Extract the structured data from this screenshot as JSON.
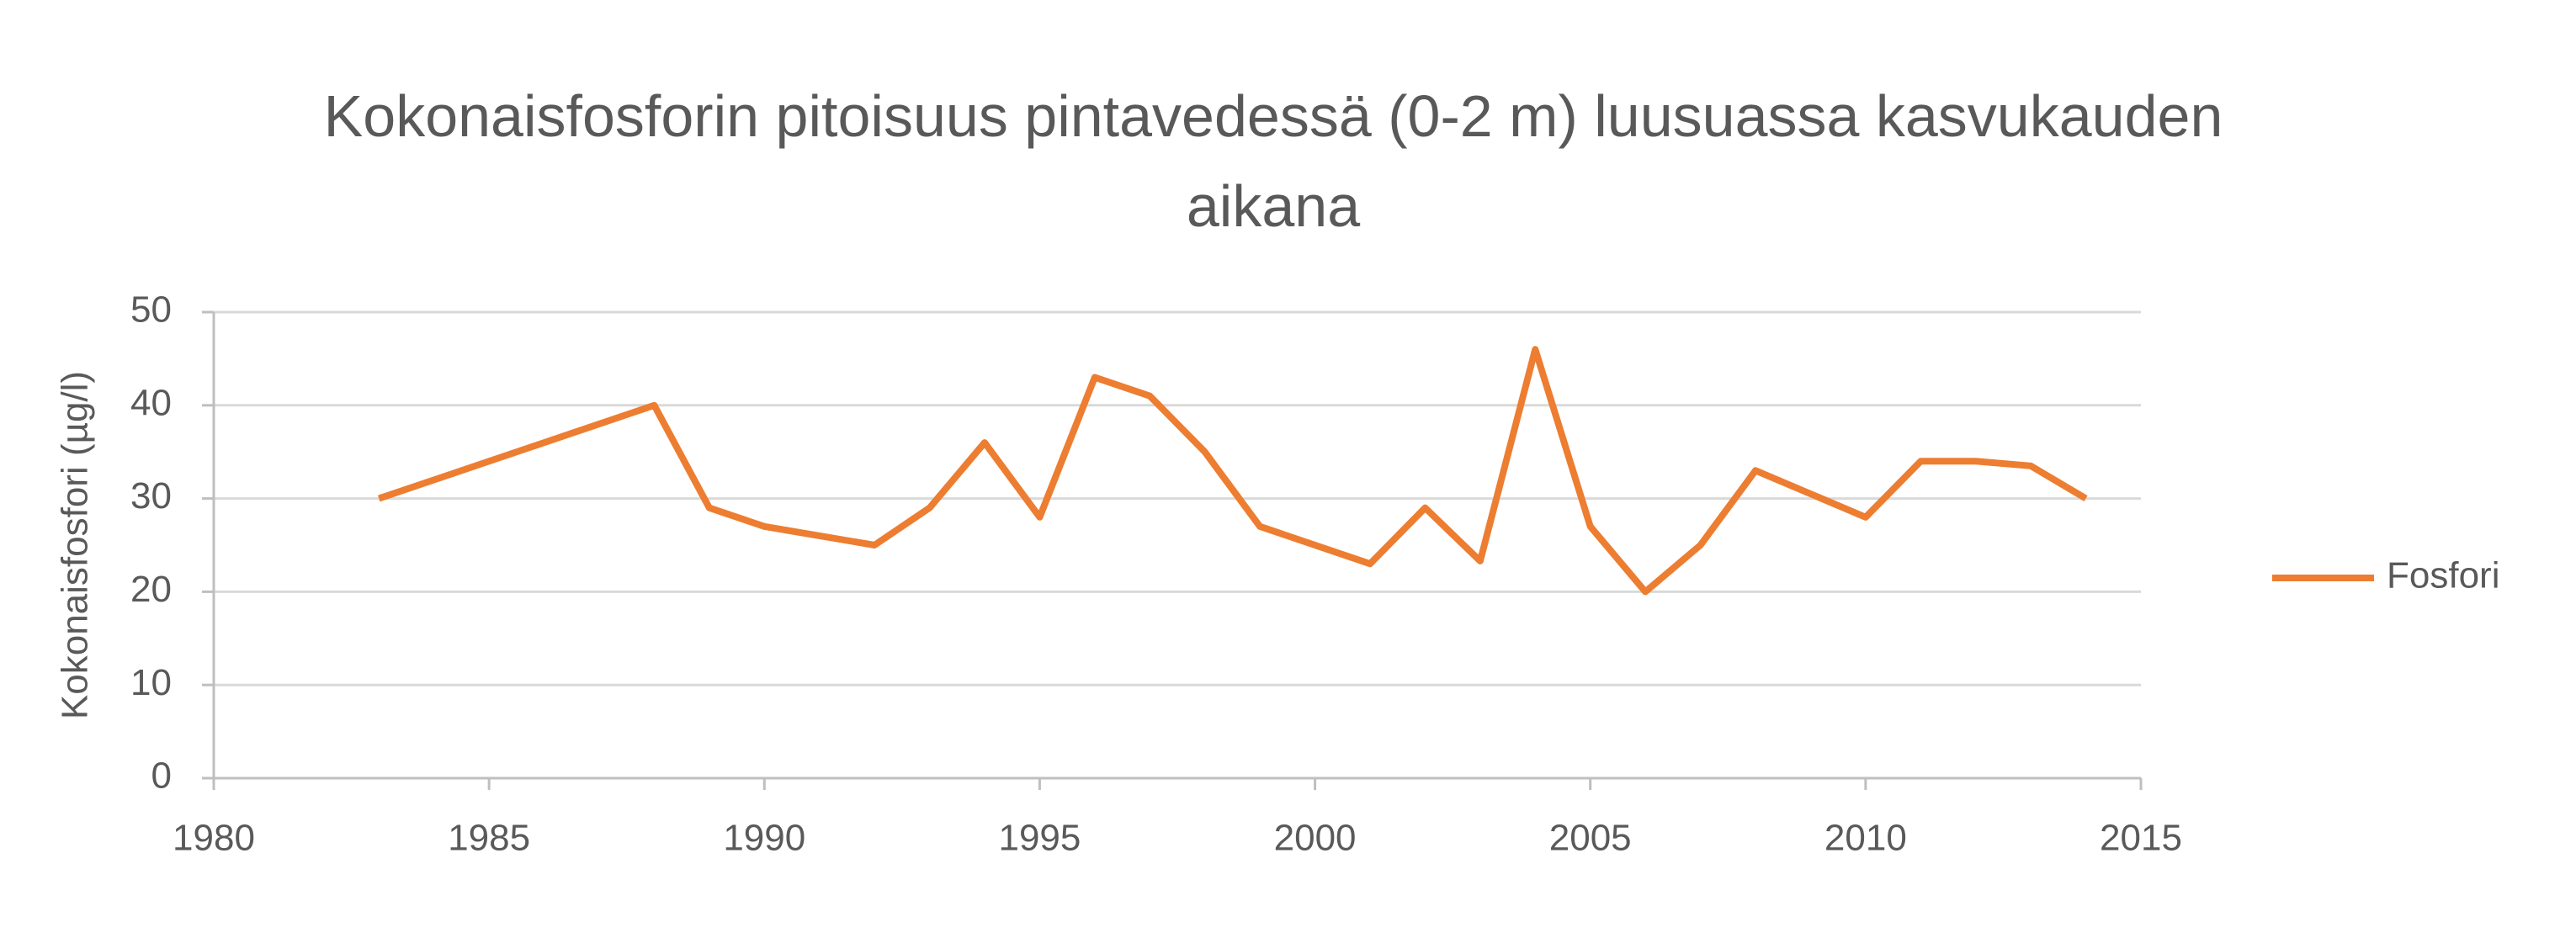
{
  "chart_data": {
    "type": "line",
    "title": "Kokonaisfosforin pitoisuus pintavedessä (0-2 m) luusuassa kasvukauden aikana",
    "y_label": "Kokonaisfosfori (µg/l)",
    "x": [
      1983,
      1988,
      1989,
      1990,
      1992,
      1993,
      1994,
      1995,
      1996,
      1997,
      1998,
      1999,
      2001,
      2002,
      2003,
      2004,
      2005,
      2006,
      2007,
      2008,
      2010,
      2011,
      2012,
      2013,
      2014
    ],
    "series": [
      {
        "name": "Fosfori",
        "color": "#ed7d31",
        "values": [
          30,
          40,
          29,
          27,
          25,
          29,
          36,
          28,
          43,
          41,
          35,
          27,
          23,
          29,
          23.3,
          46,
          27,
          20,
          25,
          33,
          28,
          34,
          34,
          33.5,
          30
        ]
      }
    ],
    "xlim": [
      1980,
      2015
    ],
    "xticks": [
      1980,
      1985,
      1990,
      1995,
      2000,
      2005,
      2010,
      2015
    ],
    "ylim": [
      0,
      50
    ],
    "yticks": [
      0,
      10,
      20,
      30,
      40,
      50
    ],
    "grid": true,
    "legend": "right"
  }
}
